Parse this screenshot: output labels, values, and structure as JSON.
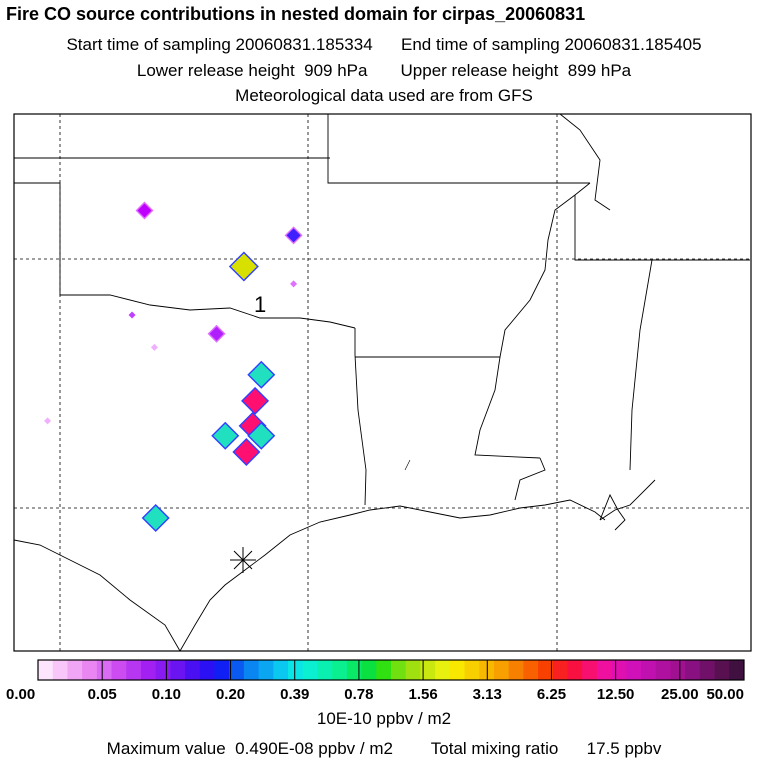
{
  "header": {
    "title": "Fire CO source contributions in nested domain for cirpas_20060831",
    "start_label": "Start time of sampling 20060831.185334",
    "end_label": "End time of sampling 20060831.185405",
    "lower_label": "Lower release height  909 hPa",
    "upper_label": "Upper release height  899 hPa",
    "met_label": "Meteorological data used are from GFS"
  },
  "map": {
    "marker_label": "1",
    "sources": [
      {
        "lon": -101.6,
        "lat": 36.95,
        "color": "#c000ff",
        "level": "small"
      },
      {
        "lon": -95.6,
        "lat": 35.95,
        "color": "#4020ff",
        "level": "small"
      },
      {
        "lon": -97.6,
        "lat": 34.7,
        "color": "#d8e000",
        "level": "large"
      },
      {
        "lon": -95.6,
        "lat": 34.0,
        "color": "#e070ff",
        "level": "tiny"
      },
      {
        "lon": -102.1,
        "lat": 32.75,
        "color": "#c040ff",
        "level": "tiny"
      },
      {
        "lon": -98.7,
        "lat": 32.0,
        "color": "#b020ff",
        "level": "small"
      },
      {
        "lon": -101.2,
        "lat": 31.45,
        "color": "#f0b0ff",
        "level": "tiny"
      },
      {
        "lon": -96.9,
        "lat": 30.35,
        "color": "#20e0c0",
        "level": "medium"
      },
      {
        "lon": -97.15,
        "lat": 29.3,
        "color": "#ff1070",
        "level": "medium"
      },
      {
        "lon": -105.5,
        "lat": 28.5,
        "color": "#f0b0ff",
        "level": "tiny"
      },
      {
        "lon": -97.25,
        "lat": 28.3,
        "color": "#ff1070",
        "level": "medium"
      },
      {
        "lon": -98.35,
        "lat": 27.9,
        "color": "#20e0c0",
        "level": "medium"
      },
      {
        "lon": -96.9,
        "lat": 27.9,
        "color": "#20e0c0",
        "level": "medium"
      },
      {
        "lon": -97.5,
        "lat": 27.25,
        "color": "#ff1070",
        "level": "medium"
      },
      {
        "lon": -101.15,
        "lat": 24.6,
        "color": "#20e0c0",
        "level": "medium"
      }
    ]
  },
  "colorbar": {
    "colors": [
      "#fde6fd",
      "#f8c6f8",
      "#f0a6f5",
      "#ea86f2",
      "#d96cf2",
      "#cc4cf2",
      "#b636f2",
      "#a320f2",
      "#8a1af2",
      "#6a14f2",
      "#4a10f2",
      "#2a10f2",
      "#1020f5",
      "#0a5af2",
      "#0a86f2",
      "#0aa6f2",
      "#0ac8f0",
      "#0ae6e6",
      "#0af0d0",
      "#0af0b0",
      "#0af090",
      "#0ae868",
      "#0ae040",
      "#30e010",
      "#70e010",
      "#a0e010",
      "#c8e810",
      "#e8f010",
      "#f8e800",
      "#f8d000",
      "#f8b800",
      "#f8a000",
      "#f88000",
      "#f86000",
      "#f84000",
      "#f82020",
      "#f81040",
      "#f81070",
      "#f010a0",
      "#e010b0",
      "#d010b8",
      "#c010b0",
      "#b010a0",
      "#a01090",
      "#881080",
      "#701068",
      "#581050",
      "#401040"
    ],
    "ticks": [
      "0.00",
      "0.05",
      "0.10",
      "0.20",
      "0.39",
      "0.78",
      "1.56",
      "3.13",
      "6.25",
      "12.50",
      "25.00",
      "50.00"
    ],
    "units": "10E-10 ppbv / m2"
  },
  "footer": {
    "max_label": "Maximum value  0.490E-08 ppbv / m2",
    "total_label": "Total mixing ratio      17.5 ppbv"
  }
}
